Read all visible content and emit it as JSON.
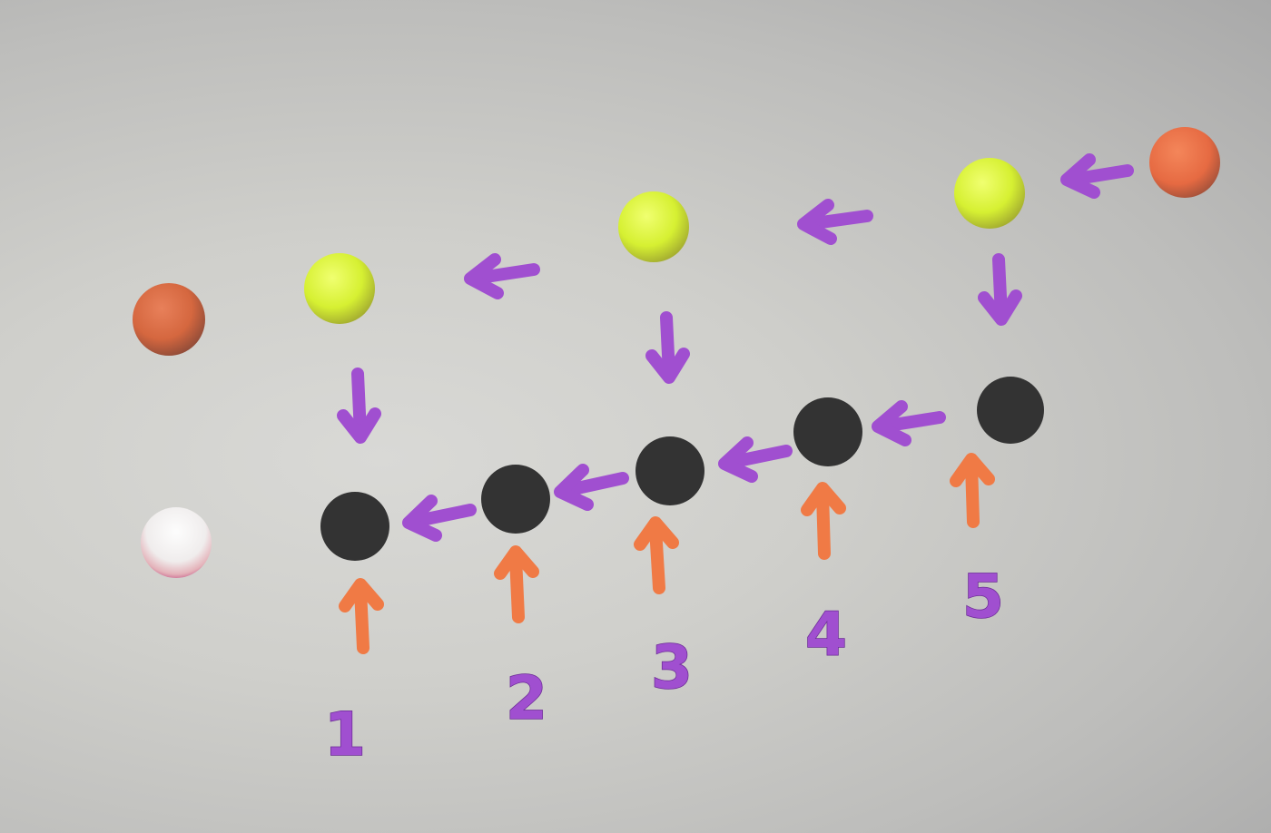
{
  "colors": {
    "purple_arrow": "#a04fd0",
    "orange_arrow": "#f07a45",
    "yellow_ball": "#d9f03a",
    "orange_ball": "#e87048",
    "black_ball": "#333333",
    "white_ball": "#f2f0f0",
    "number_color": "#a04fd0"
  },
  "labels": [
    "1",
    "2",
    "3",
    "4",
    "5"
  ]
}
